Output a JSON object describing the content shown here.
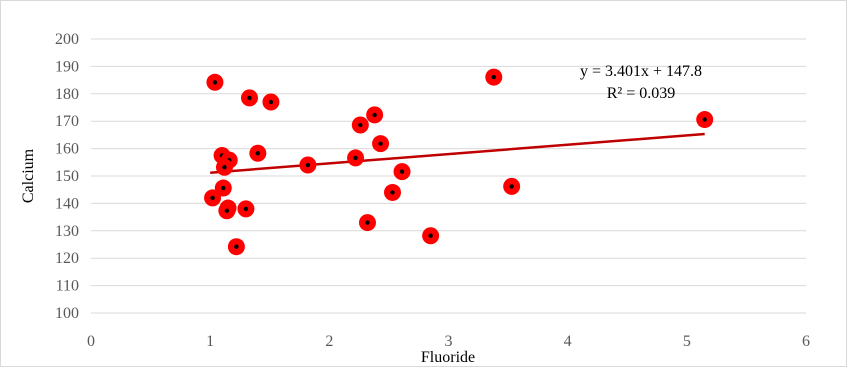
{
  "chart_data": {
    "type": "scatter",
    "xlabel": "Fluoride",
    "ylabel": "Calcium",
    "xlim": [
      0,
      6
    ],
    "ylim": [
      100,
      200
    ],
    "x_ticks": [
      0,
      1,
      2,
      3,
      4,
      5,
      6
    ],
    "y_ticks": [
      100,
      110,
      120,
      130,
      140,
      150,
      160,
      170,
      180,
      190,
      200
    ],
    "grid": "horizontal",
    "legend": "none",
    "marker_color": "#ff0000",
    "marker_center_color": "#000000",
    "trendline_color": "#c00000",
    "gridline_color": "#d9d9d9",
    "points": [
      {
        "x": 1.04,
        "y": 184.2
      },
      {
        "x": 1.33,
        "y": 178.5
      },
      {
        "x": 1.51,
        "y": 177.0
      },
      {
        "x": 1.1,
        "y": 157.5
      },
      {
        "x": 1.16,
        "y": 155.8
      },
      {
        "x": 1.12,
        "y": 153.2
      },
      {
        "x": 1.4,
        "y": 158.3
      },
      {
        "x": 1.82,
        "y": 154.0
      },
      {
        "x": 1.02,
        "y": 142.0
      },
      {
        "x": 1.11,
        "y": 145.6
      },
      {
        "x": 1.15,
        "y": 138.3
      },
      {
        "x": 1.14,
        "y": 137.3
      },
      {
        "x": 1.3,
        "y": 138.0
      },
      {
        "x": 1.22,
        "y": 124.2
      },
      {
        "x": 2.22,
        "y": 156.6
      },
      {
        "x": 2.26,
        "y": 168.6
      },
      {
        "x": 2.38,
        "y": 172.3
      },
      {
        "x": 2.43,
        "y": 161.8
      },
      {
        "x": 2.61,
        "y": 151.6
      },
      {
        "x": 2.53,
        "y": 144.0
      },
      {
        "x": 2.32,
        "y": 133.0
      },
      {
        "x": 2.85,
        "y": 128.2
      },
      {
        "x": 3.38,
        "y": 186.1
      },
      {
        "x": 3.53,
        "y": 146.2
      },
      {
        "x": 5.15,
        "y": 170.6
      }
    ],
    "trendline": {
      "type": "linear",
      "slope": 3.401,
      "intercept": 147.8,
      "x_range": [
        1.0,
        5.15
      ],
      "equation": "y = 3.401x + 147.8",
      "r_squared": "R² = 0.039"
    }
  }
}
